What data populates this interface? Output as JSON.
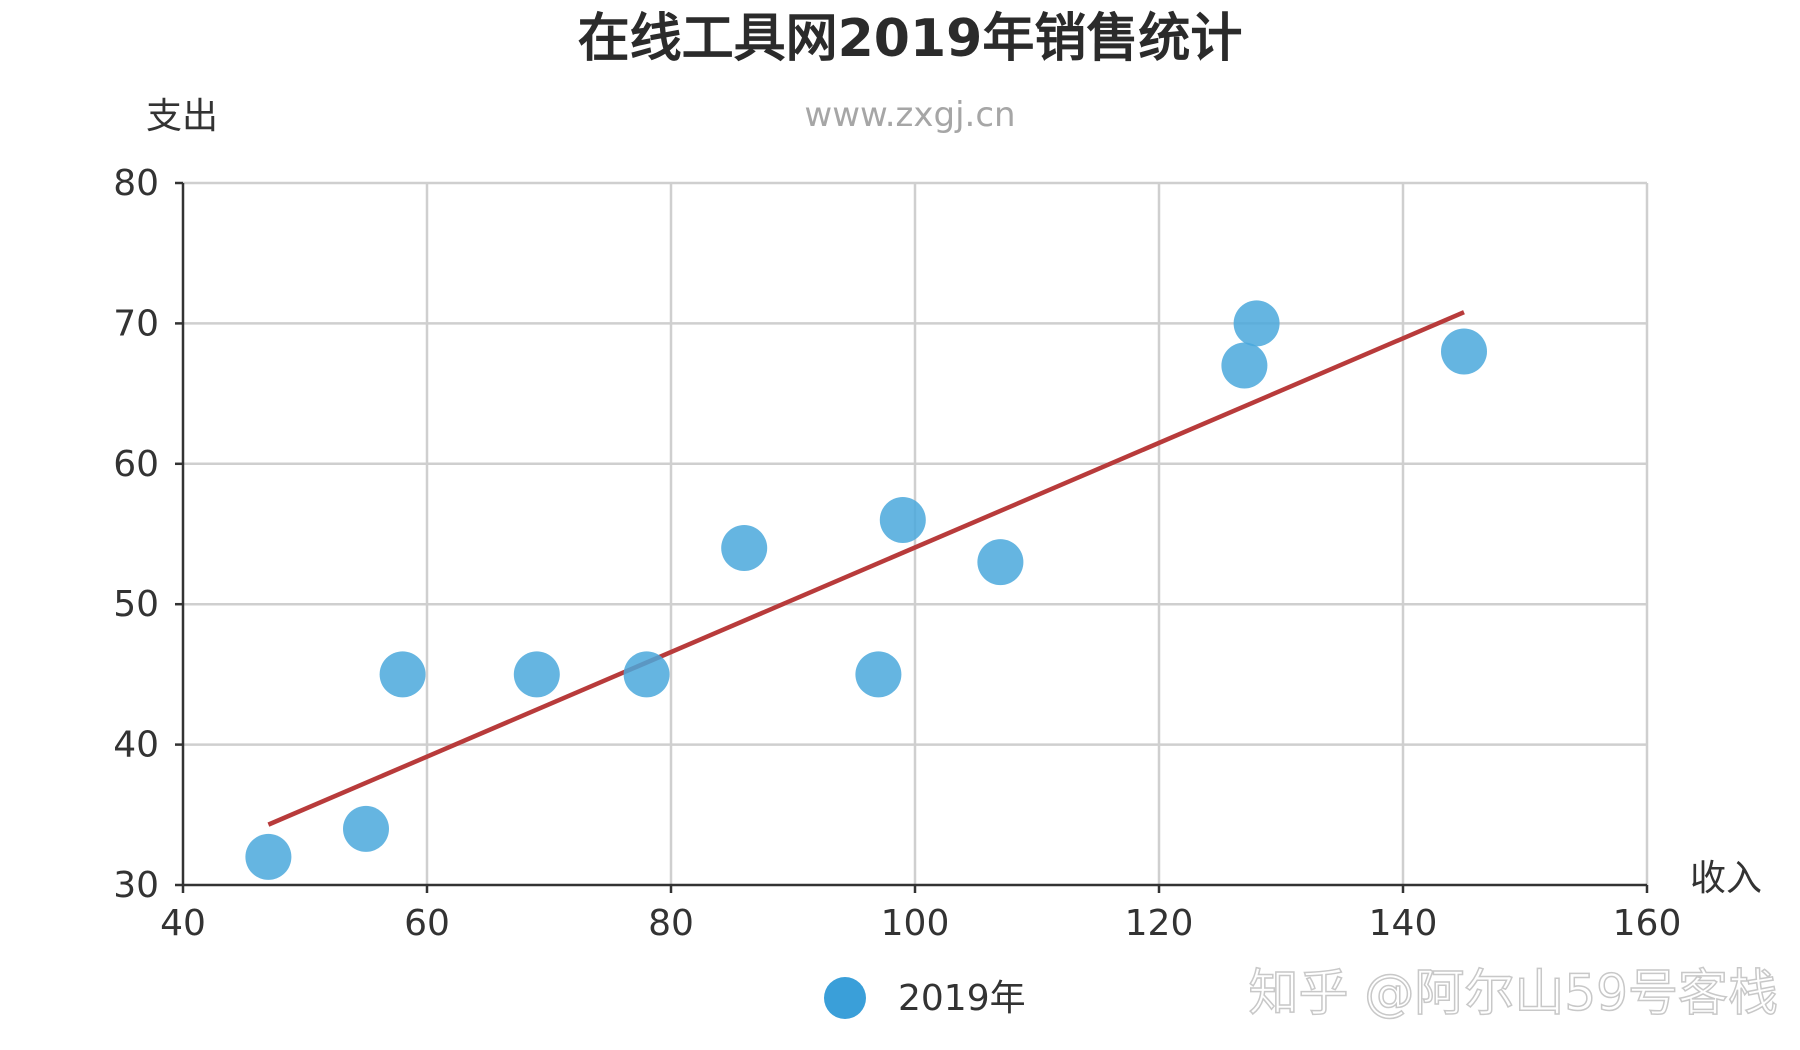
{
  "chart_data": {
    "type": "scatter",
    "title": "在线工具网2019年销售统计",
    "subtitle": "www.zxgj.cn",
    "xlabel": "收入",
    "ylabel": "支出",
    "xlim": [
      40,
      160
    ],
    "ylim": [
      30,
      80
    ],
    "xticks": [
      40,
      60,
      80,
      100,
      120,
      140,
      160
    ],
    "yticks": [
      30,
      40,
      50,
      60,
      70,
      80
    ],
    "grid": true,
    "legend": {
      "position": "bottom-center",
      "entries": [
        "2019年"
      ]
    },
    "series": [
      {
        "name": "2019年",
        "color": "#4aa8dc",
        "points": [
          {
            "x": 47,
            "y": 32
          },
          {
            "x": 55,
            "y": 34
          },
          {
            "x": 58,
            "y": 45
          },
          {
            "x": 69,
            "y": 45
          },
          {
            "x": 78,
            "y": 45
          },
          {
            "x": 86,
            "y": 54
          },
          {
            "x": 97,
            "y": 45
          },
          {
            "x": 99,
            "y": 56
          },
          {
            "x": 107,
            "y": 53
          },
          {
            "x": 127,
            "y": 67
          },
          {
            "x": 128,
            "y": 70
          },
          {
            "x": 145,
            "y": 68
          }
        ]
      }
    ],
    "trendline": {
      "color": "#b83b3b",
      "start": {
        "x": 47,
        "y": 34.3
      },
      "end": {
        "x": 145,
        "y": 70.8
      }
    },
    "watermark": "知乎 @阿尔山59号客栈"
  }
}
